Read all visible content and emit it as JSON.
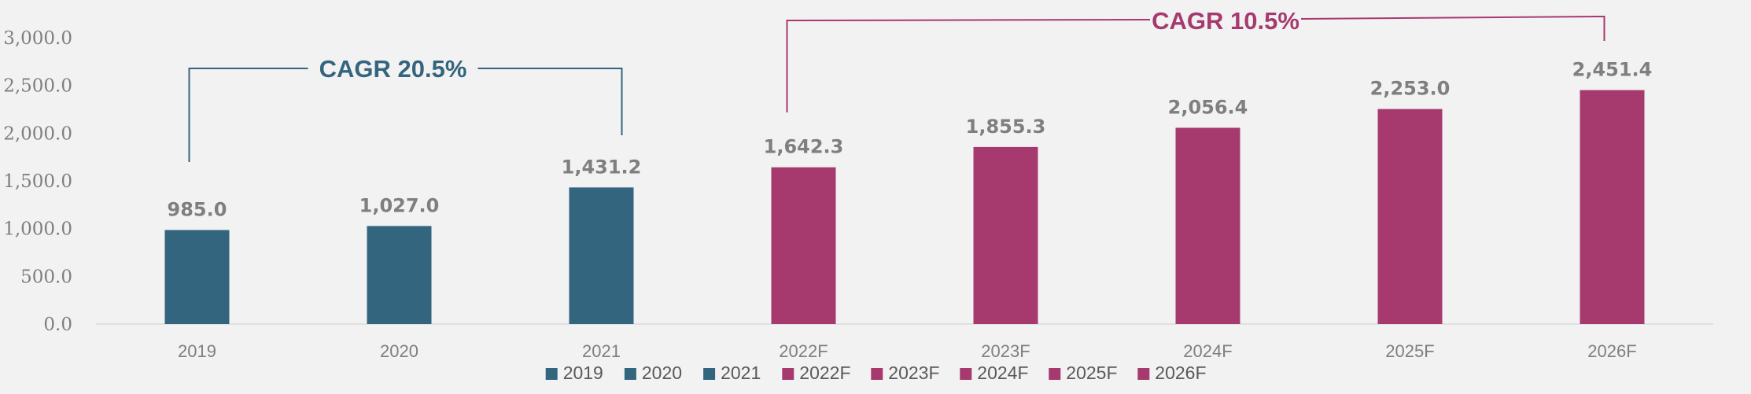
{
  "chart_data": {
    "type": "bar",
    "categories": [
      "2019",
      "2020",
      "2021",
      "2022F",
      "2023F",
      "2024F",
      "2025F",
      "2026F"
    ],
    "values": [
      985.0,
      1027.0,
      1431.2,
      1642.3,
      1855.3,
      2056.4,
      2253.0,
      2451.4
    ],
    "data_labels": [
      "985.0",
      "1,027.0",
      "1,431.2",
      "1,642.3",
      "1,855.3",
      "2,056.4",
      "2,253.0",
      "2,451.4"
    ],
    "colors": [
      "#34657f",
      "#34657f",
      "#34657f",
      "#a63a6e",
      "#a63a6e",
      "#a63a6e",
      "#a63a6e",
      "#a63a6e"
    ],
    "ylim": [
      0,
      3000
    ],
    "yticks": [
      0,
      500,
      1000,
      1500,
      2000,
      2500,
      3000
    ],
    "ytick_labels": [
      "0.0",
      "500.0",
      "1,000.0",
      "1,500.0",
      "2,000.0",
      "2,500.0",
      "3,000.0"
    ],
    "grid": false,
    "legend_position": "bottom",
    "legend": [
      "2019",
      "2020",
      "2021",
      "2022F",
      "2023F",
      "2024F",
      "2025F",
      "2026F"
    ],
    "annotations": [
      {
        "text": "CAGR  20.5%",
        "from": "2019",
        "to": "2021",
        "color": "#34657f"
      },
      {
        "text": "CAGR 10.5%",
        "from": "2022F",
        "to": "2026F",
        "color": "#a63a6e"
      }
    ]
  }
}
